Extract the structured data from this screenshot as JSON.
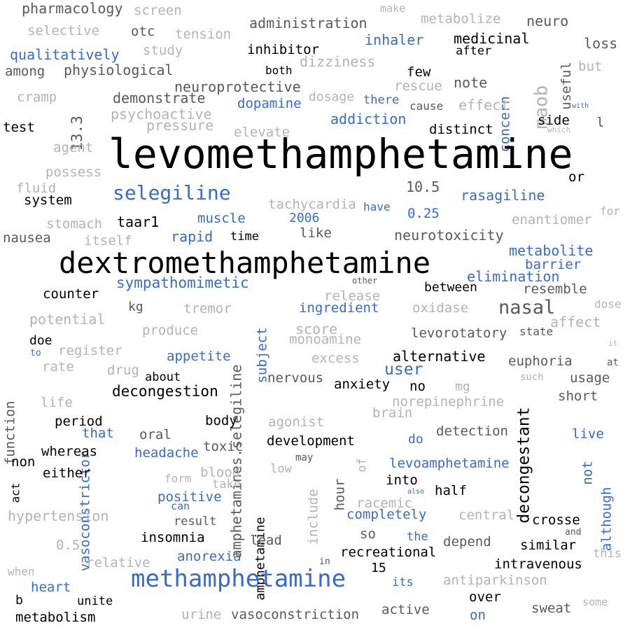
{
  "palette": {
    "black": "#000000",
    "dark_gray": "#595959",
    "light_gray": "#b3b3b3",
    "blue": "#3a6bc4"
  },
  "words": [
    {
      "text": "pharmacology",
      "color": "dark_gray",
      "size": 20
    },
    {
      "text": "screen",
      "color": "light_gray",
      "size": 19
    },
    {
      "text": "make",
      "color": "light_gray",
      "size": 15
    },
    {
      "text": "metabolize",
      "color": "light_gray",
      "size": 19
    },
    {
      "text": "neuro",
      "color": "dark_gray",
      "size": 20
    },
    {
      "text": "selective",
      "color": "light_gray",
      "size": 19
    },
    {
      "text": "otc",
      "color": "dark_gray",
      "size": 19
    },
    {
      "text": "tension",
      "color": "light_gray",
      "size": 19
    },
    {
      "text": "administration",
      "color": "dark_gray",
      "size": 20
    },
    {
      "text": "inhaler",
      "color": "blue",
      "size": 20
    },
    {
      "text": "medicinal",
      "color": "black",
      "size": 20
    },
    {
      "text": "loss",
      "color": "dark_gray",
      "size": 20
    },
    {
      "text": "qualitatively",
      "color": "blue",
      "size": 20
    },
    {
      "text": "study",
      "color": "light_gray",
      "size": 19
    },
    {
      "text": "inhibitor",
      "color": "black",
      "size": 19
    },
    {
      "text": "after",
      "color": "black",
      "size": 17
    },
    {
      "text": "dizziness",
      "color": "light_gray",
      "size": 20
    },
    {
      "text": "useful",
      "color": "dark_gray",
      "size": 19
    },
    {
      "text": "but",
      "color": "light_gray",
      "size": 19
    },
    {
      "text": "among",
      "color": "dark_gray",
      "size": 19
    },
    {
      "text": "physiological",
      "color": "dark_gray",
      "size": 20
    },
    {
      "text": "both",
      "color": "black",
      "size": 16
    },
    {
      "text": "few",
      "color": "black",
      "size": 19
    },
    {
      "text": "maob",
      "color": "light_gray",
      "size": 26
    },
    {
      "text": "cramp",
      "color": "light_gray",
      "size": 19
    },
    {
      "text": "neuroprotective",
      "color": "dark_gray",
      "size": 20
    },
    {
      "text": "rescue",
      "color": "light_gray",
      "size": 19
    },
    {
      "text": "note",
      "color": "dark_gray",
      "size": 20
    },
    {
      "text": "concern",
      "color": "blue",
      "size": 19
    },
    {
      "text": "13.3",
      "color": "dark_gray",
      "size": 21
    },
    {
      "text": "demonstrate",
      "color": "dark_gray",
      "size": 20
    },
    {
      "text": "dosage",
      "color": "light_gray",
      "size": 18
    },
    {
      "text": "there",
      "color": "blue",
      "size": 17
    },
    {
      "text": "cause",
      "color": "dark_gray",
      "size": 16
    },
    {
      "text": "effect",
      "color": "light_gray",
      "size": 20
    },
    {
      "text": "with",
      "color": "blue",
      "size": 10
    },
    {
      "text": "psychoactive",
      "color": "light_gray",
      "size": 20
    },
    {
      "text": "dopamine",
      "color": "blue",
      "size": 19
    },
    {
      "text": "pressure",
      "color": "light_gray",
      "size": 20
    },
    {
      "text": "addiction",
      "color": "blue",
      "size": 20
    },
    {
      "text": "side",
      "color": "black",
      "size": 19
    },
    {
      "text": "l",
      "color": "dark_gray",
      "size": 19
    },
    {
      "text": "test",
      "color": "black",
      "size": 19
    },
    {
      "text": "elevate",
      "color": "light_gray",
      "size": 19
    },
    {
      "text": "distinct",
      "color": "black",
      "size": 19
    },
    {
      "text": "which",
      "color": "light_gray",
      "size": 11
    },
    {
      "text": "agent",
      "color": "light_gray",
      "size": 19
    },
    {
      "text": "levomethamphetamine",
      "color": "black",
      "size": 58
    },
    {
      "text": "possess",
      "color": "light_gray",
      "size": 19
    },
    {
      "text": "or",
      "color": "black",
      "size": 19
    },
    {
      "text": "fluid",
      "color": "light_gray",
      "size": 19
    },
    {
      "text": "selegiline",
      "color": "blue",
      "size": 28
    },
    {
      "text": "10.5",
      "color": "dark_gray",
      "size": 20
    },
    {
      "text": "rasagiline",
      "color": "blue",
      "size": 20
    },
    {
      "text": "system",
      "color": "black",
      "size": 19
    },
    {
      "text": "tachycardia",
      "color": "light_gray",
      "size": 19
    },
    {
      "text": "have",
      "color": "blue",
      "size": 16
    },
    {
      "text": "0.25",
      "color": "blue",
      "size": 19
    },
    {
      "text": "for",
      "color": "light_gray",
      "size": 16
    },
    {
      "text": "stomach",
      "color": "light_gray",
      "size": 19
    },
    {
      "text": "taar1",
      "color": "black",
      "size": 20
    },
    {
      "text": "muscle",
      "color": "blue",
      "size": 19
    },
    {
      "text": "2006",
      "color": "blue",
      "size": 18
    },
    {
      "text": "enantiomer",
      "color": "light_gray",
      "size": 19
    },
    {
      "text": "nausea",
      "color": "dark_gray",
      "size": 19
    },
    {
      "text": "itself",
      "color": "light_gray",
      "size": 19
    },
    {
      "text": "rapid",
      "color": "blue",
      "size": 20
    },
    {
      "text": "time",
      "color": "black",
      "size": 17
    },
    {
      "text": "like",
      "color": "dark_gray",
      "size": 19
    },
    {
      "text": "neurotoxicity",
      "color": "dark_gray",
      "size": 20
    },
    {
      "text": "dextromethamphetamine",
      "color": "black",
      "size": 42
    },
    {
      "text": "metabolite",
      "color": "blue",
      "size": 20
    },
    {
      "text": "barrier",
      "color": "blue",
      "size": 19
    },
    {
      "text": "elimination",
      "color": "blue",
      "size": 20
    },
    {
      "text": "other",
      "color": "dark_gray",
      "size": 12
    },
    {
      "text": "sympathomimetic",
      "color": "blue",
      "size": 21
    },
    {
      "text": "between",
      "color": "black",
      "size": 18
    },
    {
      "text": "resemble",
      "color": "dark_gray",
      "size": 19
    },
    {
      "text": "counter",
      "color": "black",
      "size": 19
    },
    {
      "text": "release",
      "color": "light_gray",
      "size": 19
    },
    {
      "text": "kg",
      "color": "dark_gray",
      "size": 18
    },
    {
      "text": "tremor",
      "color": "light_gray",
      "size": 19
    },
    {
      "text": "ingredient",
      "color": "blue",
      "size": 19
    },
    {
      "text": "oxidase",
      "color": "light_gray",
      "size": 19
    },
    {
      "text": "nasal",
      "color": "dark_gray",
      "size": 27
    },
    {
      "text": "dose",
      "color": "light_gray",
      "size": 16
    },
    {
      "text": "potential",
      "color": "light_gray",
      "size": 20
    },
    {
      "text": "score",
      "color": "light_gray",
      "size": 20
    },
    {
      "text": "affect",
      "color": "light_gray",
      "size": 20
    },
    {
      "text": "produce",
      "color": "light_gray",
      "size": 19
    },
    {
      "text": "levorotatory",
      "color": "dark_gray",
      "size": 19
    },
    {
      "text": "state",
      "color": "dark_gray",
      "size": 16
    },
    {
      "text": "doe",
      "color": "black",
      "size": 18
    },
    {
      "text": "monoamine",
      "color": "light_gray",
      "size": 19
    },
    {
      "text": "amphetamines.selegiline",
      "color": "dark_gray",
      "size": 20
    },
    {
      "text": "subject",
      "color": "blue",
      "size": 19
    },
    {
      "text": "it",
      "color": "light_gray",
      "size": 11
    },
    {
      "text": "to",
      "color": "blue",
      "size": 13
    },
    {
      "text": "register",
      "color": "light_gray",
      "size": 19
    },
    {
      "text": "appetite",
      "color": "blue",
      "size": 19
    },
    {
      "text": "excess",
      "color": "light_gray",
      "size": 19
    },
    {
      "text": "alternative",
      "color": "black",
      "size": 20
    },
    {
      "text": "euphoria",
      "color": "dark_gray",
      "size": 19
    },
    {
      "text": "at",
      "color": "dark_gray",
      "size": 14
    },
    {
      "text": "rate",
      "color": "light_gray",
      "size": 19
    },
    {
      "text": "drug",
      "color": "light_gray",
      "size": 19
    },
    {
      "text": "user",
      "color": "blue",
      "size": 23
    },
    {
      "text": "about",
      "color": "black",
      "size": 17
    },
    {
      "text": "such",
      "color": "light_gray",
      "size": 14
    },
    {
      "text": "usage",
      "color": "dark_gray",
      "size": 19
    },
    {
      "text": "function",
      "color": "dark_gray",
      "size": 19
    },
    {
      "text": "decongestion",
      "color": "black",
      "size": 21
    },
    {
      "text": "nervous",
      "color": "dark_gray",
      "size": 19
    },
    {
      "text": "anxiety",
      "color": "black",
      "size": 19
    },
    {
      "text": "no",
      "color": "black",
      "size": 19
    },
    {
      "text": "mg",
      "color": "light_gray",
      "size": 18
    },
    {
      "text": "decongestant",
      "color": "black",
      "size": 23
    },
    {
      "text": "short",
      "color": "dark_gray",
      "size": 19
    },
    {
      "text": "life",
      "color": "light_gray",
      "size": 19
    },
    {
      "text": "norepinephrine",
      "color": "light_gray",
      "size": 19
    },
    {
      "text": "brain",
      "color": "light_gray",
      "size": 19
    },
    {
      "text": "period",
      "color": "black",
      "size": 19
    },
    {
      "text": "vasoconstrictor",
      "color": "blue",
      "size": 19
    },
    {
      "text": "body",
      "color": "black",
      "size": 19
    },
    {
      "text": "agonist",
      "color": "light_gray",
      "size": 19
    },
    {
      "text": "that",
      "color": "blue",
      "size": 19
    },
    {
      "text": "oral",
      "color": "dark_gray",
      "size": 19
    },
    {
      "text": "detection",
      "color": "dark_gray",
      "size": 19
    },
    {
      "text": "do",
      "color": "blue",
      "size": 18
    },
    {
      "text": "live",
      "color": "blue",
      "size": 19
    },
    {
      "text": "toxic",
      "color": "dark_gray",
      "size": 19
    },
    {
      "text": "development",
      "color": "black",
      "size": 19
    },
    {
      "text": "whereas",
      "color": "black",
      "size": 19
    },
    {
      "text": "headache",
      "color": "blue",
      "size": 19
    },
    {
      "text": "non",
      "color": "black",
      "size": 19
    },
    {
      "text": "may",
      "color": "dark_gray",
      "size": 14
    },
    {
      "text": "levoamphetamine",
      "color": "blue",
      "size": 19
    },
    {
      "text": "not",
      "color": "blue",
      "size": 19
    },
    {
      "text": "of",
      "color": "light_gray",
      "size": 17
    },
    {
      "text": "either",
      "color": "black",
      "size": 19
    },
    {
      "text": "blood",
      "color": "light_gray",
      "size": 19
    },
    {
      "text": "low",
      "color": "light_gray",
      "size": 17
    },
    {
      "text": "although",
      "color": "blue",
      "size": 19
    },
    {
      "text": "act",
      "color": "black",
      "size": 16
    },
    {
      "text": "form",
      "color": "light_gray",
      "size": 16
    },
    {
      "text": "take",
      "color": "light_gray",
      "size": 17
    },
    {
      "text": "include",
      "color": "light_gray",
      "size": 19
    },
    {
      "text": "hour",
      "color": "dark_gray",
      "size": 19
    },
    {
      "text": "into",
      "color": "black",
      "size": 19
    },
    {
      "text": "half",
      "color": "black",
      "size": 19
    },
    {
      "text": "positive",
      "color": "blue",
      "size": 19
    },
    {
      "text": "also",
      "color": "blue",
      "size": 10
    },
    {
      "text": "racemic",
      "color": "light_gray",
      "size": 19
    },
    {
      "text": "can",
      "color": "blue",
      "size": 15
    },
    {
      "text": "amphetamine",
      "color": "black",
      "size": 18
    },
    {
      "text": "hypertension",
      "color": "light_gray",
      "size": 20
    },
    {
      "text": "completely",
      "color": "blue",
      "size": 19
    },
    {
      "text": "central",
      "color": "light_gray",
      "size": 19
    },
    {
      "text": "result",
      "color": "dark_gray",
      "size": 17
    },
    {
      "text": "crosse",
      "color": "black",
      "size": 19
    },
    {
      "text": "and",
      "color": "dark_gray",
      "size": 13
    },
    {
      "text": "insomnia",
      "color": "black",
      "size": 19
    },
    {
      "text": "lead",
      "color": "dark_gray",
      "size": 19
    },
    {
      "text": "so",
      "color": "dark_gray",
      "size": 19
    },
    {
      "text": "the",
      "color": "blue",
      "size": 17
    },
    {
      "text": "depend",
      "color": "dark_gray",
      "size": 19
    },
    {
      "text": "similar",
      "color": "black",
      "size": 19
    },
    {
      "text": "0.5",
      "color": "light_gray",
      "size": 19
    },
    {
      "text": "anorexia",
      "color": "blue",
      "size": 19
    },
    {
      "text": "recreational",
      "color": "black",
      "size": 19
    },
    {
      "text": "this",
      "color": "light_gray",
      "size": 17
    },
    {
      "text": "relative",
      "color": "light_gray",
      "size": 19
    },
    {
      "text": "in",
      "color": "dark_gray",
      "size": 13
    },
    {
      "text": "15",
      "color": "black",
      "size": 18
    },
    {
      "text": "intravenous",
      "color": "black",
      "size": 19
    },
    {
      "text": "when",
      "color": "light_gray",
      "size": 16
    },
    {
      "text": "methamphetamine",
      "color": "blue",
      "size": 34
    },
    {
      "text": "its",
      "color": "blue",
      "size": 17
    },
    {
      "text": "antiparkinson",
      "color": "light_gray",
      "size": 19
    },
    {
      "text": "heart",
      "color": "blue",
      "size": 19
    },
    {
      "text": "b",
      "color": "black",
      "size": 18
    },
    {
      "text": "unite",
      "color": "black",
      "size": 17
    },
    {
      "text": "over",
      "color": "black",
      "size": 19
    },
    {
      "text": "some",
      "color": "light_gray",
      "size": 15
    },
    {
      "text": "sweat",
      "color": "dark_gray",
      "size": 19
    },
    {
      "text": "active",
      "color": "dark_gray",
      "size": 19
    },
    {
      "text": "metabolism",
      "color": "black",
      "size": 19
    },
    {
      "text": "urine",
      "color": "light_gray",
      "size": 19
    },
    {
      "text": "vasoconstriction",
      "color": "dark_gray",
      "size": 19
    },
    {
      "text": "on",
      "color": "blue",
      "size": 19
    }
  ]
}
